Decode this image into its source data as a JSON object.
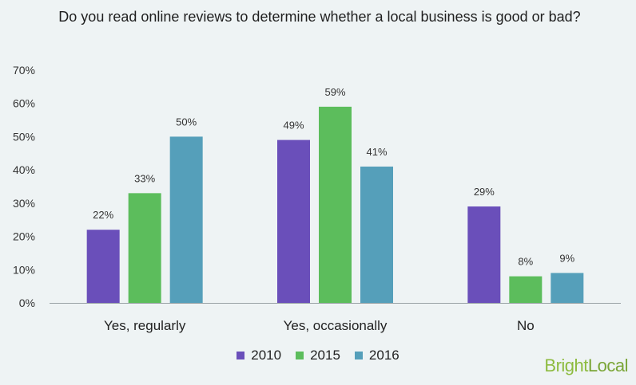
{
  "chart_data": {
    "type": "bar",
    "title": "Do you read online reviews to determine whether a local business is good or bad?",
    "categories": [
      "Yes, regularly",
      "Yes, occasionally",
      "No"
    ],
    "series": [
      {
        "name": "2010",
        "values": [
          22,
          49,
          29
        ],
        "labels": [
          "22%",
          "49%",
          "29%"
        ],
        "color": "#6a4fba"
      },
      {
        "name": "2015",
        "values": [
          33,
          59,
          8
        ],
        "labels": [
          "33%",
          "59%",
          "8%"
        ],
        "color": "#5cbd5c"
      },
      {
        "name": "2016",
        "values": [
          50,
          41,
          9
        ],
        "labels": [
          "50%",
          "41%",
          "9%"
        ],
        "color": "#559fba"
      }
    ],
    "ylim": [
      0,
      70
    ],
    "yticks": [
      0,
      10,
      20,
      30,
      40,
      50,
      60,
      70
    ],
    "ytick_labels": [
      "0%",
      "10%",
      "20%",
      "30%",
      "40%",
      "50%",
      "60%",
      "70%"
    ],
    "grid": false,
    "legend_position": "bottom"
  },
  "brand": {
    "part1": "Bright",
    "part2": "Local"
  }
}
